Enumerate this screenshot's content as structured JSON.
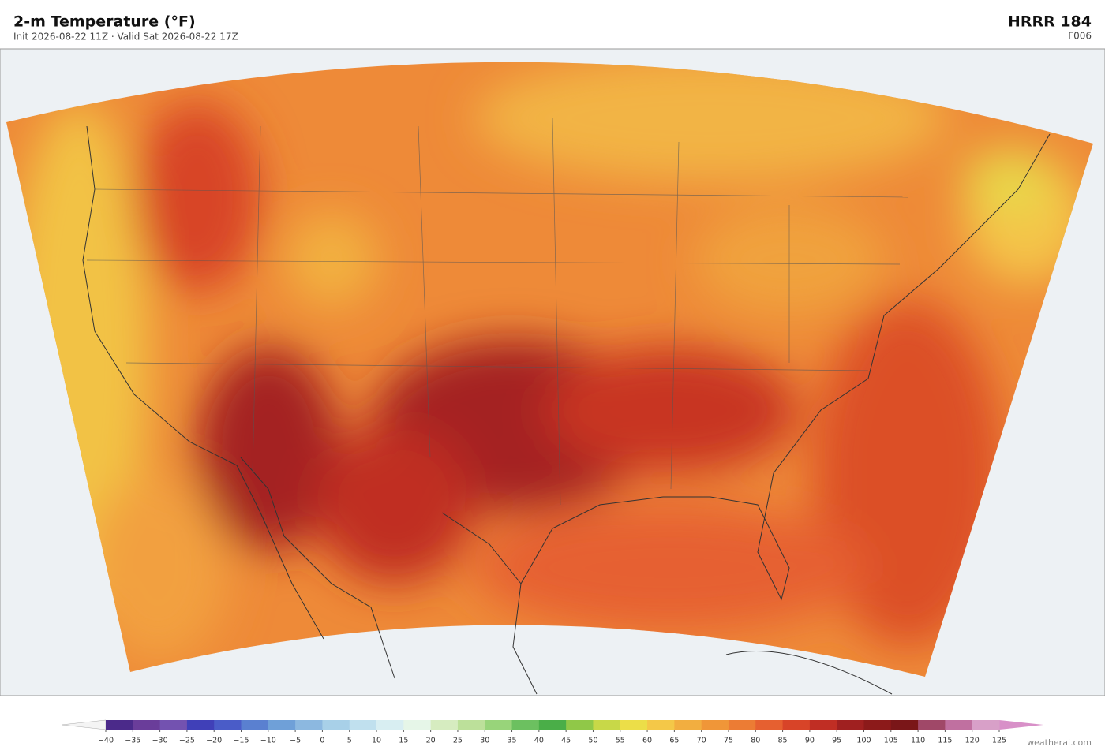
{
  "header": {
    "title": "2-m Temperature  (°F)",
    "subtitle": "Init 2026-08-22 11Z   ·   Valid Sat 2026-08-22 17Z",
    "model": "HRRR  184",
    "forecast_hour": "F006"
  },
  "colorbar": {
    "ticks": [
      {
        "value": -40,
        "label": "−40"
      },
      {
        "value": -35,
        "label": "−35"
      },
      {
        "value": -30,
        "label": "−30"
      },
      {
        "value": -25,
        "label": "−25"
      },
      {
        "value": -20,
        "label": "−20"
      },
      {
        "value": -15,
        "label": "−15"
      },
      {
        "value": -10,
        "label": "−10"
      },
      {
        "value": -5,
        "label": "−5"
      },
      0,
      5,
      10,
      15,
      20,
      25,
      30,
      35,
      40,
      45,
      50,
      55,
      60,
      65,
      70,
      75,
      80,
      85,
      90,
      95,
      100,
      105,
      110,
      115,
      120,
      125
    ],
    "colors": [
      "#4b2a8a",
      "#6a3d9a",
      "#7352b0",
      "#4040b8",
      "#4a5cc8",
      "#5a80d0",
      "#6fa0d8",
      "#8cb8e0",
      "#a8d0e8",
      "#c0e0ee",
      "#d8eef2",
      "#e6f6e8",
      "#d6ecc0",
      "#bce09a",
      "#98d47a",
      "#6cc060",
      "#4aae48",
      "#90c848",
      "#c8d848",
      "#ecde48",
      "#f4c848",
      "#f2ae40",
      "#f09638",
      "#ec7c34",
      "#e66030",
      "#d84428",
      "#c02e24",
      "#a02020",
      "#8c1a1a",
      "#7a1618",
      "#a04868",
      "#c070a0",
      "#d8a0c8"
    ],
    "under_color": "#f4f4f4",
    "over_color": "#d890c8"
  },
  "footer": {
    "credit": "weatherai.com"
  }
}
